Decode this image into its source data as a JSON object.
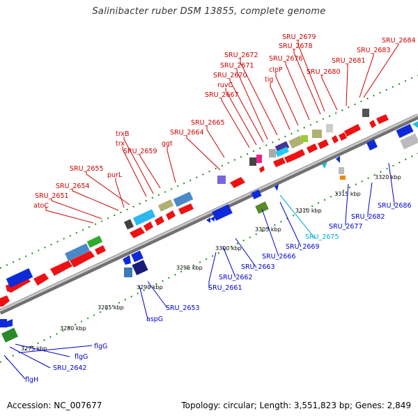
{
  "title": "Salinibacter ruber DSM 13855, complete genome",
  "footer": {
    "accession": "Accession: NC_007677",
    "summary": "Topology: circular; Length: 3,551,823 bp; Genes: 2,849"
  },
  "colors": {
    "red_label": "#cc0000",
    "blue_label": "#0000cc",
    "cyan_label": "#00aadd",
    "backbone": "#9a9a9a",
    "tick_green": "#1a8a1a"
  },
  "ticks": [
    "3275 kbp",
    "3280 kbp",
    "3285 kbp",
    "3290 kbp",
    "3295 kbp",
    "3300 kbp",
    "3305 kbp",
    "3310 kbp",
    "3315 kbp",
    "3320 kbp"
  ],
  "top_labels": [
    "SRU_2679",
    "SRU_2684",
    "SRU_2678",
    "SRU_2683",
    "SRU_2672",
    "SRU_2676",
    "SRU_2671",
    "clpP",
    "SRU_2681",
    "SRU_2670",
    "SRU_2680",
    "ruvC",
    "tig",
    "SRU_2667",
    "SRU_2665",
    "trxB",
    "SRU_2664",
    "trx",
    "ggt",
    "SRU_2659",
    "SRU_2655",
    "purL",
    "SRU_2654",
    "SRU_2651",
    "atoC"
  ],
  "bottom_labels": [
    "SRU_2686",
    "SRU_2682",
    "SRU_2677",
    "SRU_2675",
    "SRU_2669",
    "SRU_2666",
    "SRU_2663",
    "SRU_2662",
    "SRU_2661",
    "SRU_2653",
    "aspG",
    "flgG",
    "flgG",
    "SRU_2642",
    "flgH"
  ]
}
